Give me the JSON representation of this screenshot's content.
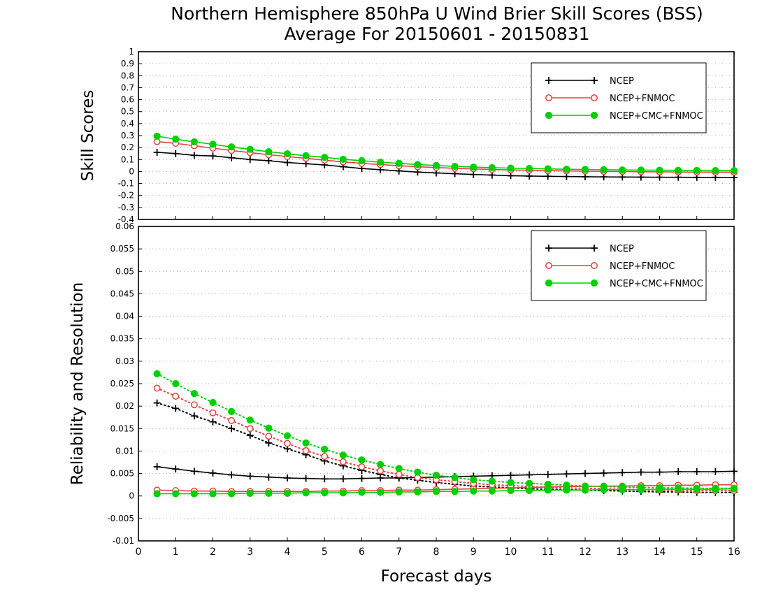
{
  "title_line1": "Northern Hemisphere 850hPa U Wind Brier Skill Scores (BSS)",
  "title_line2": "Average For 20150601 - 20150831",
  "colors": {
    "NCEP": "#000000",
    "NCEP+FNMOC": "#e8403f",
    "NCEP+CMC+FNMOC": "#00d000"
  },
  "chart_data": [
    {
      "type": "line",
      "ylabel": "Skill Scores",
      "xlabel": "",
      "xlim": [
        0,
        16
      ],
      "ylim": [
        -0.4,
        1
      ],
      "yticks": [
        "1",
        "0.9",
        "0.8",
        "0.7",
        "0.6",
        "0.5",
        "0.4",
        "0.3",
        "0.2",
        "0.1",
        "0",
        "-0.1",
        "-0.2",
        "-0.3",
        "-0.4"
      ],
      "grid": true,
      "legend": "top-right",
      "legend_entries": [
        "NCEP",
        "NCEP+FNMOC",
        "NCEP+CMC+FNMOC"
      ],
      "x": [
        0.5,
        1,
        1.5,
        2,
        2.5,
        3,
        3.5,
        4,
        4.5,
        5,
        5.5,
        6,
        6.5,
        7,
        7.5,
        8,
        8.5,
        9,
        9.5,
        10,
        10.5,
        11,
        11.5,
        12,
        12.5,
        13,
        13.5,
        14,
        14.5,
        15,
        15.5,
        16
      ],
      "series": [
        {
          "name": "NCEP",
          "marker": "plus",
          "style": "solid",
          "values": [
            0.16,
            0.15,
            0.135,
            0.13,
            0.115,
            0.1,
            0.09,
            0.075,
            0.065,
            0.055,
            0.04,
            0.025,
            0.015,
            0.005,
            -0.005,
            -0.012,
            -0.018,
            -0.025,
            -0.03,
            -0.035,
            -0.038,
            -0.04,
            -0.042,
            -0.044,
            -0.045,
            -0.046,
            -0.047,
            -0.048,
            -0.048,
            -0.049,
            -0.049,
            -0.05
          ]
        },
        {
          "name": "NCEP+FNMOC",
          "marker": "open-circle",
          "style": "solid",
          "values": [
            0.25,
            0.235,
            0.215,
            0.195,
            0.175,
            0.158,
            0.14,
            0.125,
            0.11,
            0.095,
            0.08,
            0.068,
            0.058,
            0.048,
            0.04,
            0.033,
            0.027,
            0.022,
            0.017,
            0.013,
            0.01,
            0.007,
            0.005,
            0.003,
            0.001,
            0,
            -0.002,
            -0.003,
            -0.004,
            -0.005,
            -0.005,
            -0.006
          ]
        },
        {
          "name": "NCEP+CMC+FNMOC",
          "marker": "filled-circle",
          "style": "solid",
          "values": [
            0.295,
            0.27,
            0.248,
            0.227,
            0.205,
            0.185,
            0.165,
            0.148,
            0.132,
            0.118,
            0.102,
            0.09,
            0.078,
            0.068,
            0.058,
            0.05,
            0.043,
            0.037,
            0.032,
            0.028,
            0.025,
            0.022,
            0.019,
            0.017,
            0.015,
            0.013,
            0.012,
            0.011,
            0.01,
            0.009,
            0.008,
            0.007
          ]
        }
      ]
    },
    {
      "type": "line",
      "ylabel": "Reliability and Resolution",
      "xlabel": "Forecast days",
      "xlim": [
        0,
        16
      ],
      "ylim": [
        -0.01,
        0.06
      ],
      "yticks": [
        "0.06",
        "0.055",
        "0.05",
        "0.045",
        "0.04",
        "0.035",
        "0.03",
        "0.025",
        "0.02",
        "0.015",
        "0.01",
        "0.005",
        "0",
        "-0.005",
        "-0.01"
      ],
      "xticks": [
        "0",
        "1",
        "2",
        "3",
        "4",
        "5",
        "6",
        "7",
        "8",
        "9",
        "10",
        "11",
        "12",
        "13",
        "14",
        "15",
        "16"
      ],
      "grid": true,
      "legend": "top-right",
      "legend_entries": [
        "NCEP",
        "NCEP+FNMOC",
        "NCEP+CMC+FNMOC"
      ],
      "x": [
        0.5,
        1,
        1.5,
        2,
        2.5,
        3,
        3.5,
        4,
        4.5,
        5,
        5.5,
        6,
        6.5,
        7,
        7.5,
        8,
        8.5,
        9,
        9.5,
        10,
        10.5,
        11,
        11.5,
        12,
        12.5,
        13,
        13.5,
        14,
        14.5,
        15,
        15.5,
        16
      ],
      "series": [
        {
          "name": "NCEP",
          "metric": "reliability",
          "marker": "plus",
          "style": "solid",
          "values": [
            0.0065,
            0.006,
            0.0055,
            0.0051,
            0.0047,
            0.0044,
            0.0042,
            0.004,
            0.0039,
            0.0038,
            0.0038,
            0.0039,
            0.004,
            0.004,
            0.0041,
            0.0042,
            0.0043,
            0.0044,
            0.0045,
            0.0046,
            0.0047,
            0.0048,
            0.0049,
            0.005,
            0.0051,
            0.0052,
            0.0053,
            0.0053,
            0.0054,
            0.0054,
            0.0054,
            0.0055
          ]
        },
        {
          "name": "NCEP",
          "metric": "resolution",
          "marker": "plus",
          "style": "dotted",
          "values": [
            0.0207,
            0.0195,
            0.0178,
            0.0165,
            0.015,
            0.0135,
            0.0118,
            0.0105,
            0.0092,
            0.0078,
            0.0067,
            0.0057,
            0.0048,
            0.004,
            0.0035,
            0.003,
            0.0026,
            0.0022,
            0.002,
            0.0018,
            0.0016,
            0.0015,
            0.0014,
            0.0013,
            0.0012,
            0.0011,
            0.001,
            0.0009,
            0.0009,
            0.0008,
            0.0008,
            0.0008
          ]
        },
        {
          "name": "NCEP+FNMOC",
          "metric": "reliability",
          "marker": "open-circle",
          "style": "solid",
          "values": [
            0.0013,
            0.0012,
            0.0011,
            0.0011,
            0.001,
            0.001,
            0.001,
            0.001,
            0.001,
            0.0011,
            0.0011,
            0.0012,
            0.0012,
            0.0013,
            0.0013,
            0.0014,
            0.0015,
            0.0016,
            0.0017,
            0.0018,
            0.0019,
            0.002,
            0.0021,
            0.0021,
            0.0022,
            0.0022,
            0.0023,
            0.0023,
            0.0024,
            0.0024,
            0.0025,
            0.0025
          ]
        },
        {
          "name": "NCEP+FNMOC",
          "metric": "resolution",
          "marker": "open-circle",
          "style": "dotted",
          "values": [
            0.024,
            0.0222,
            0.0203,
            0.0185,
            0.0168,
            0.015,
            0.0133,
            0.0117,
            0.0101,
            0.0088,
            0.0076,
            0.0065,
            0.0056,
            0.0048,
            0.0041,
            0.0036,
            0.0032,
            0.0028,
            0.0025,
            0.0023,
            0.0021,
            0.0019,
            0.0018,
            0.0017,
            0.0016,
            0.0015,
            0.0014,
            0.0013,
            0.0013,
            0.0012,
            0.0012,
            0.0012
          ]
        },
        {
          "name": "NCEP+CMC+FNMOC",
          "metric": "reliability",
          "marker": "filled-circle",
          "style": "solid",
          "values": [
            0.0005,
            0.0005,
            0.0005,
            0.0005,
            0.0005,
            0.0006,
            0.0006,
            0.0006,
            0.0007,
            0.0007,
            0.0007,
            0.0008,
            0.0008,
            0.0009,
            0.0009,
            0.001,
            0.001,
            0.0011,
            0.0011,
            0.0012,
            0.0012,
            0.0013,
            0.0013,
            0.0013,
            0.0014,
            0.0014,
            0.0014,
            0.0015,
            0.0015,
            0.0015,
            0.0015,
            0.0016
          ]
        },
        {
          "name": "NCEP+CMC+FNMOC",
          "metric": "resolution",
          "marker": "filled-circle",
          "style": "dotted",
          "values": [
            0.0272,
            0.025,
            0.0228,
            0.0208,
            0.0188,
            0.0169,
            0.0151,
            0.0134,
            0.0118,
            0.0104,
            0.0091,
            0.008,
            0.007,
            0.0061,
            0.0053,
            0.0046,
            0.0041,
            0.0036,
            0.0033,
            0.003,
            0.0028,
            0.0026,
            0.0024,
            0.0022,
            0.0021,
            0.002,
            0.0019,
            0.0018,
            0.0018,
            0.0017,
            0.0017,
            0.0017
          ]
        }
      ]
    }
  ]
}
